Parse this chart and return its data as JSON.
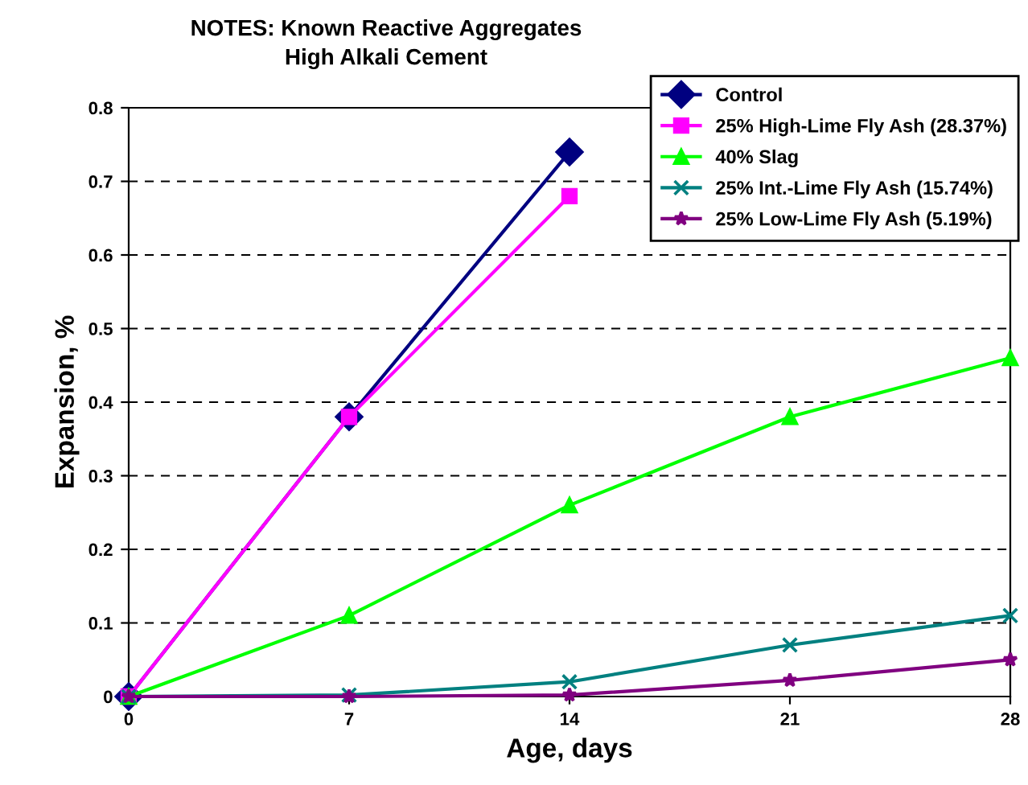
{
  "chart_data": {
    "type": "line",
    "title": "NOTES: Known Reactive Aggregates\nHigh Alkali Cement",
    "xlabel": "Age, days",
    "ylabel": "Expansion, %",
    "xlim": [
      0,
      28
    ],
    "xticks": [
      0,
      7,
      14,
      21,
      28
    ],
    "ylim": [
      0,
      0.8
    ],
    "yticks": [
      0,
      0.1,
      0.2,
      0.3,
      0.4,
      0.5,
      0.6,
      0.7,
      0.8
    ],
    "grid": "y",
    "legend": "top right",
    "line_style": "solid",
    "series": [
      {
        "name": "Control",
        "color": "#000080",
        "marker": "diamond",
        "x": [
          0,
          7,
          14
        ],
        "values": [
          0,
          0.38,
          0.74
        ]
      },
      {
        "name": "25% High-Lime Fly Ash (28.37%)",
        "color": "#ff00ff",
        "marker": "square",
        "x": [
          0,
          7,
          14
        ],
        "values": [
          0,
          0.38,
          0.68
        ]
      },
      {
        "name": "40% Slag",
        "color": "#00ff00",
        "marker": "triangle",
        "x": [
          0,
          7,
          14,
          21,
          28
        ],
        "values": [
          0,
          0.11,
          0.26,
          0.38,
          0.46
        ]
      },
      {
        "name": "25% Int.-Lime Fly Ash (15.74%)",
        "color": "#008080",
        "marker": "cross",
        "x": [
          0,
          7,
          14,
          21,
          28
        ],
        "values": [
          0,
          0.002,
          0.02,
          0.07,
          0.11
        ]
      },
      {
        "name": "25% Low-Lime Fly Ash (5.19%)",
        "color": "#800080",
        "marker": "star",
        "x": [
          0,
          7,
          14,
          21,
          28
        ],
        "values": [
          0,
          0,
          0.002,
          0.022,
          0.05
        ]
      }
    ]
  }
}
